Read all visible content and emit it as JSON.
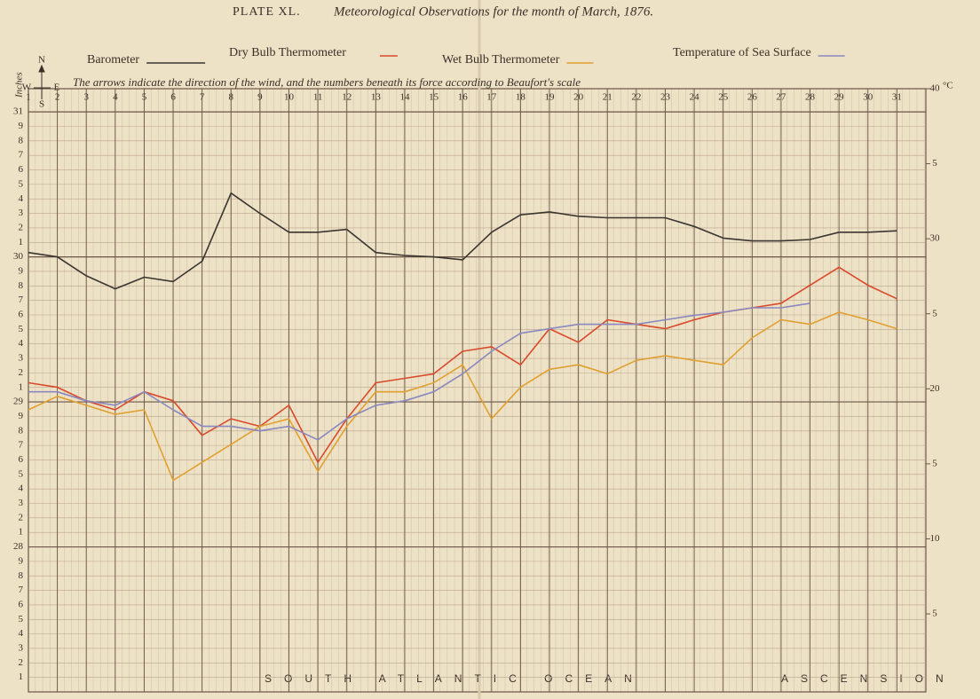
{
  "chart_data": {
    "type": "line",
    "plate": "PLATE XL.",
    "title": "Meteorological Observations for the month of March, 1876.",
    "subtitle": "The arrows indicate the direction of the wind, and the numbers beneath its force according to Beaufort's scale",
    "ylabel": "Inches",
    "y2label": "°C",
    "compass": [
      "N",
      "S",
      "E",
      "W"
    ],
    "annotations": [
      "SOUTH ATLANTIC OCEAN",
      "ASCENSION"
    ],
    "grid": true,
    "x": [
      1,
      2,
      3,
      4,
      5,
      6,
      7,
      8,
      9,
      10,
      11,
      12,
      13,
      14,
      15,
      16,
      17,
      18,
      19,
      20,
      21,
      22,
      23,
      24,
      25,
      26,
      27,
      28,
      29,
      30,
      31
    ],
    "xlim": [
      1,
      32
    ],
    "xticks": [
      1,
      2,
      3,
      4,
      5,
      6,
      7,
      8,
      9,
      10,
      11,
      12,
      13,
      14,
      15,
      16,
      17,
      18,
      19,
      20,
      21,
      22,
      23,
      24,
      25,
      26,
      27,
      28,
      29,
      30,
      31
    ],
    "ylim": [
      27,
      31.16
    ],
    "yticks": [
      31,
      {
        "value": 30.9,
        "label": "9"
      },
      {
        "value": 30.8,
        "label": "8"
      },
      {
        "value": 30.7,
        "label": "7"
      },
      {
        "value": 30.6,
        "label": "6"
      },
      {
        "value": 30.5,
        "label": "5"
      },
      {
        "value": 30.4,
        "label": "4"
      },
      {
        "value": 30.3,
        "label": "3"
      },
      {
        "value": 30.2,
        "label": "2"
      },
      {
        "value": 30.1,
        "label": "1"
      },
      30,
      {
        "value": 29.9,
        "label": "9"
      },
      {
        "value": 29.8,
        "label": "8"
      },
      {
        "value": 29.7,
        "label": "7"
      },
      {
        "value": 29.6,
        "label": "6"
      },
      {
        "value": 29.5,
        "label": "5"
      },
      {
        "value": 29.4,
        "label": "4"
      },
      {
        "value": 29.3,
        "label": "3"
      },
      {
        "value": 29.2,
        "label": "2"
      },
      {
        "value": 29.1,
        "label": "1"
      },
      29,
      {
        "value": 28.9,
        "label": "9"
      },
      {
        "value": 28.8,
        "label": "8"
      },
      {
        "value": 28.7,
        "label": "7"
      },
      {
        "value": 28.6,
        "label": "6"
      },
      {
        "value": 28.5,
        "label": "5"
      },
      {
        "value": 28.4,
        "label": "4"
      },
      {
        "value": 28.3,
        "label": "3"
      },
      {
        "value": 28.2,
        "label": "2"
      },
      {
        "value": 28.1,
        "label": "1"
      },
      28,
      {
        "value": 27.9,
        "label": "9"
      },
      {
        "value": 27.8,
        "label": "8"
      },
      {
        "value": 27.7,
        "label": "7"
      },
      {
        "value": 27.6,
        "label": "6"
      },
      {
        "value": 27.5,
        "label": "5"
      },
      {
        "value": 27.4,
        "label": "4"
      },
      {
        "value": 27.3,
        "label": "3"
      },
      {
        "value": 27.2,
        "label": "2"
      },
      {
        "value": 27.1,
        "label": "1"
      }
    ],
    "y2lim": [
      -0.2,
      40
    ],
    "y2ticks": [
      40,
      {
        "value": 35,
        "label": "5"
      },
      30,
      {
        "value": 25,
        "label": "5"
      },
      20,
      {
        "value": 15,
        "label": "5"
      },
      10,
      {
        "value": 5,
        "label": "5"
      }
    ],
    "series": [
      {
        "name": "Barometer",
        "color": "#3a3530",
        "axis": "y",
        "values": [
          30.03,
          30.0,
          29.87,
          29.78,
          29.86,
          29.83,
          29.97,
          30.44,
          30.3,
          30.17,
          30.17,
          30.19,
          30.03,
          30.01,
          30.0,
          29.98,
          30.17,
          30.29,
          30.31,
          30.28,
          30.27,
          30.27,
          30.27,
          30.21,
          30.13,
          30.11,
          30.11,
          30.12,
          30.17,
          30.17,
          30.18
        ]
      },
      {
        "name": "Dry Bulb Thermometer",
        "color": "#d94a2a",
        "axis": "y2",
        "values": [
          20.4,
          20.1,
          19.2,
          18.6,
          19.8,
          19.2,
          16.9,
          18.0,
          17.5,
          18.9,
          15.1,
          18.0,
          20.4,
          20.7,
          21.0,
          22.5,
          22.8,
          21.6,
          24.0,
          23.1,
          24.6,
          24.3,
          24.0,
          24.6,
          25.1,
          25.4,
          25.7,
          26.9,
          28.1,
          26.9,
          26.0
        ]
      },
      {
        "name": "Wet Bulb Thermometer",
        "color": "#e0a030",
        "axis": "y2",
        "values": [
          18.6,
          19.5,
          18.9,
          18.3,
          18.6,
          13.9,
          15.1,
          16.3,
          17.5,
          18.0,
          14.5,
          17.5,
          19.8,
          19.8,
          20.4,
          21.6,
          18.0,
          20.1,
          21.3,
          21.6,
          21.0,
          21.9,
          22.2,
          21.9,
          21.6,
          23.4,
          24.6,
          24.3,
          25.1,
          24.6,
          24.0
        ]
      },
      {
        "name": "Temperature of Sea Surface",
        "color": "#8a88c0",
        "axis": "y2",
        "values": [
          19.8,
          19.8,
          19.2,
          18.9,
          19.8,
          18.6,
          17.5,
          17.5,
          17.2,
          17.5,
          16.6,
          18.0,
          18.9,
          19.2,
          19.8,
          21.0,
          22.5,
          23.7,
          24.0,
          24.3,
          24.3,
          24.3,
          24.6,
          24.9,
          25.1,
          25.4,
          25.4,
          25.7,
          null,
          null,
          null
        ]
      }
    ]
  }
}
